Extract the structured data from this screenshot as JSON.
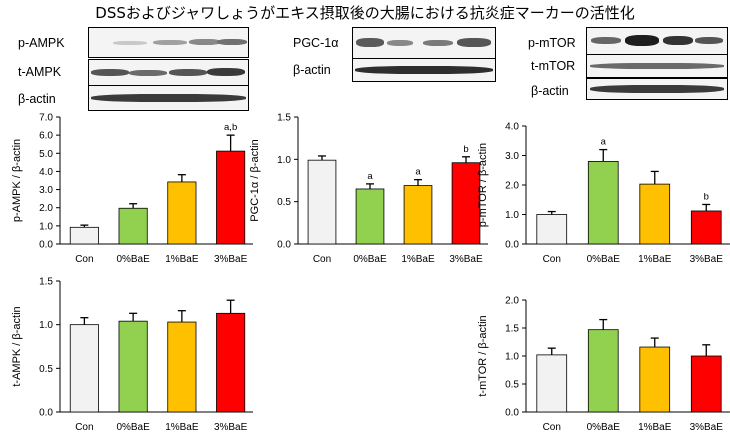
{
  "title": "DSSおよびジャワしょうがエキス摂取後の大腸における抗炎症マーカーの活性化",
  "blots": {
    "p_ampk": "p-AMPK",
    "t_ampk": "t-AMPK",
    "beta_actin_1": "β-actin",
    "pgc": "PGC-1α",
    "beta_actin_2": "β-actin",
    "p_mtor": "p-mTOR",
    "t_mtor": "t-mTOR",
    "beta_actin_3": "β-actin"
  },
  "colors": {
    "Con": "#f2f2f2",
    "0%BaE": "#92d050",
    "1%BaE": "#ffc000",
    "3%BaE": "#ff0000"
  },
  "chart_data": [
    {
      "type": "bar",
      "ylabel": "p-AMPK / β-actin",
      "categories": [
        "Con",
        "0%BaE",
        "1%BaE",
        "3%BaE"
      ],
      "values": [
        0.92,
        1.97,
        3.42,
        5.12
      ],
      "errors": [
        0.12,
        0.25,
        0.4,
        0.88
      ],
      "annotations": [
        "",
        "",
        "",
        "a,b"
      ],
      "ylim": [
        0,
        7
      ],
      "ticks": [
        "0.0",
        "1.0",
        "2.0",
        "3.0",
        "4.0",
        "5.0",
        "6.0",
        "7.0"
      ]
    },
    {
      "type": "bar",
      "ylabel": "PGC-1α / β-actin",
      "categories": [
        "Con",
        "0%BaE",
        "1%BaE",
        "3%BaE"
      ],
      "values": [
        0.99,
        0.65,
        0.69,
        0.96
      ],
      "errors": [
        0.05,
        0.06,
        0.07,
        0.07
      ],
      "annotations": [
        "",
        "a",
        "a",
        "b"
      ],
      "ylim": [
        0,
        1.5
      ],
      "ticks": [
        "0.0",
        "0.5",
        "1.0",
        "1.5"
      ]
    },
    {
      "type": "bar",
      "ylabel": "p-mTOR / β-actin",
      "categories": [
        "Con",
        "0%BaE",
        "1%BaE",
        "3%BaE"
      ],
      "values": [
        1.0,
        2.8,
        2.03,
        1.12
      ],
      "errors": [
        0.1,
        0.4,
        0.43,
        0.22
      ],
      "annotations": [
        "",
        "a",
        "",
        "b"
      ],
      "ylim": [
        0,
        4
      ],
      "ticks": [
        "0.0",
        "1.0",
        "2.0",
        "3.0",
        "4.0"
      ]
    },
    {
      "type": "bar",
      "ylabel": "t-AMPK / β-actin",
      "categories": [
        "Con",
        "0%BaE",
        "1%BaE",
        "3%BaE"
      ],
      "values": [
        1.0,
        1.04,
        1.03,
        1.13
      ],
      "errors": [
        0.08,
        0.09,
        0.13,
        0.15
      ],
      "annotations": [
        "",
        "",
        "",
        ""
      ],
      "ylim": [
        0,
        1.5
      ],
      "ticks": [
        "0.0",
        "0.5",
        "1.0",
        "1.5"
      ]
    },
    {
      "type": "bar",
      "ylabel": "t-mTOR / β-actin",
      "categories": [
        "Con",
        "0%BaE",
        "1%BaE",
        "3%BaE"
      ],
      "values": [
        1.02,
        1.47,
        1.16,
        1.0
      ],
      "errors": [
        0.12,
        0.18,
        0.16,
        0.2
      ],
      "annotations": [
        "",
        "",
        "",
        ""
      ],
      "ylim": [
        0,
        2
      ],
      "ticks": [
        "0.0",
        "0.5",
        "1.0",
        "1.5",
        "2.0"
      ]
    }
  ]
}
